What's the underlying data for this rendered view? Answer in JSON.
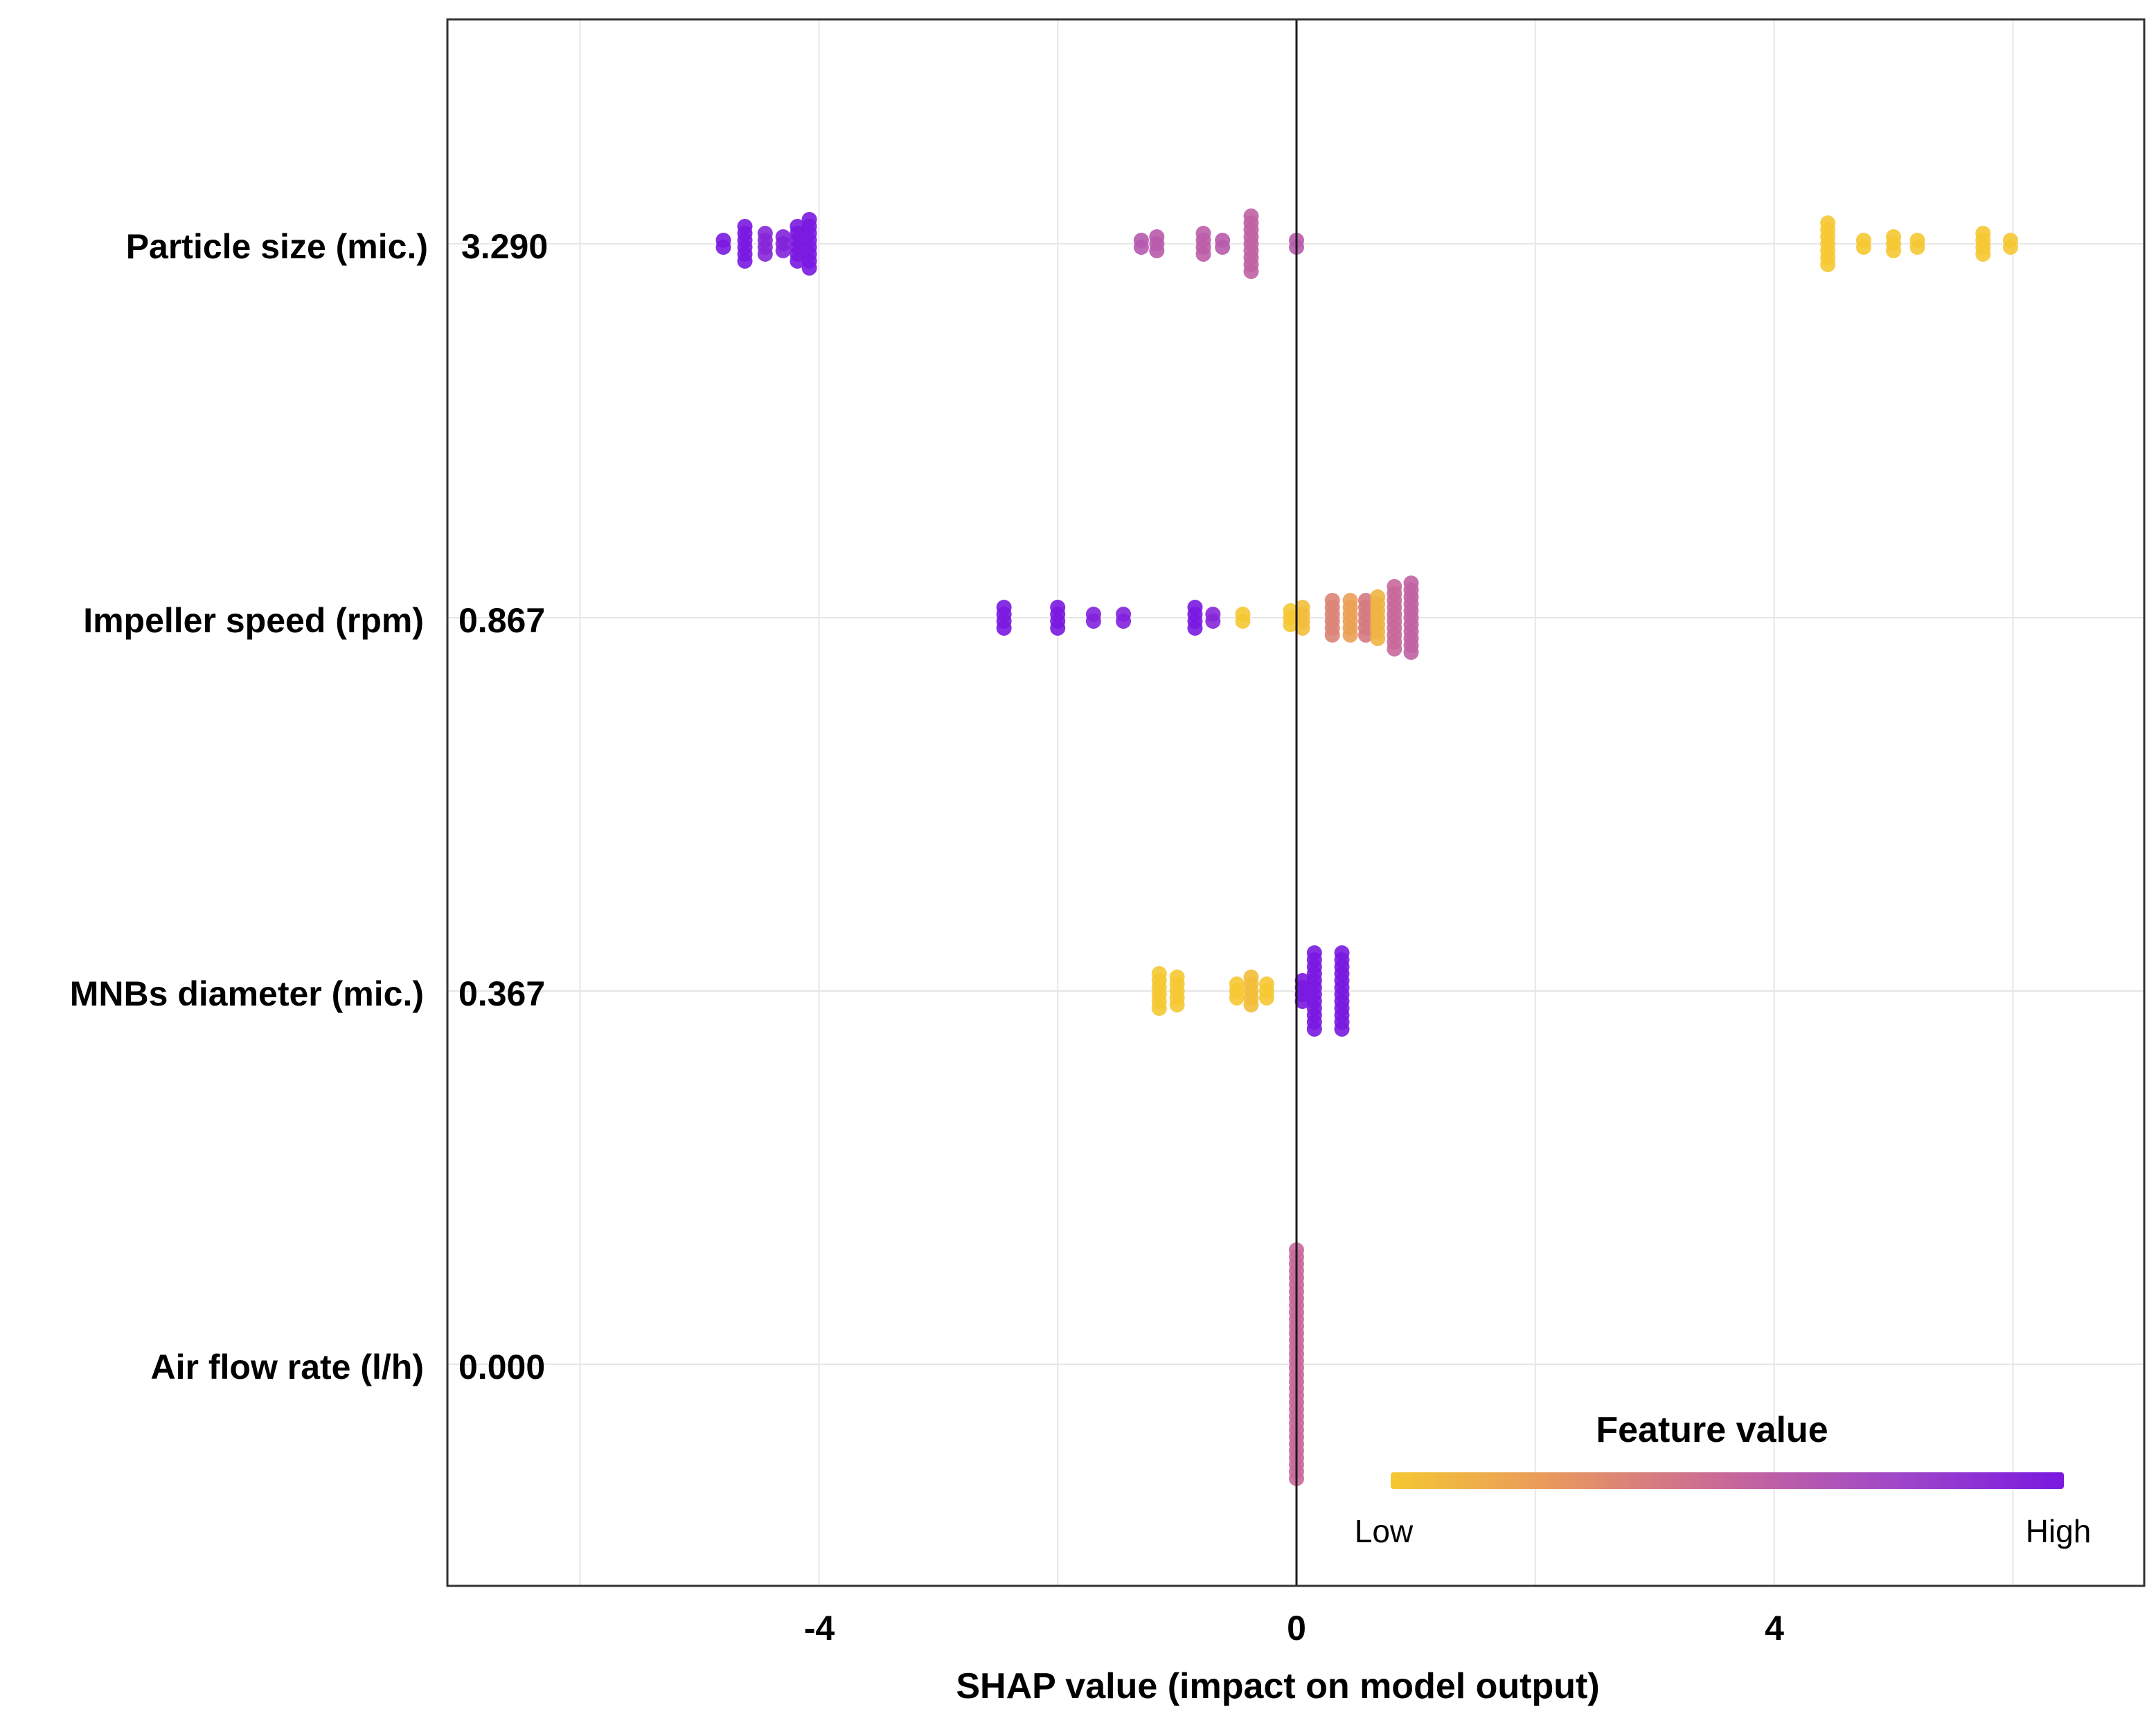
{
  "chart_data": {
    "type": "scatter",
    "title": "",
    "xlabel": "SHAP value (impact on model output)",
    "ylabel": "",
    "xlim": [
      -6.8,
      7.2
    ],
    "xticks": [
      -4,
      0,
      4
    ],
    "xtick_labels": [
      "-4",
      "0",
      "4"
    ],
    "grid": true,
    "legend": {
      "title": "Feature value",
      "low_label": "Low",
      "high_label": "High",
      "colors": [
        "#f5c832",
        "#e89660",
        "#c8689a",
        "#a048c8",
        "#7a18e0"
      ],
      "position": "bottom-right"
    },
    "features": [
      {
        "name": "Particle size (mic.)",
        "importance": "3.290",
        "points": [
          {
            "x": -4.8,
            "v": 1.0,
            "n": 2
          },
          {
            "x": -4.62,
            "v": 1.0,
            "n": 6
          },
          {
            "x": -4.45,
            "v": 0.92,
            "n": 4
          },
          {
            "x": -4.3,
            "v": 0.95,
            "n": 3
          },
          {
            "x": -4.18,
            "v": 1.0,
            "n": 6
          },
          {
            "x": -4.08,
            "v": 1.0,
            "n": 8
          },
          {
            "x": -1.3,
            "v": 0.62,
            "n": 2
          },
          {
            "x": -1.17,
            "v": 0.6,
            "n": 3
          },
          {
            "x": -0.78,
            "v": 0.58,
            "n": 4
          },
          {
            "x": -0.62,
            "v": 0.6,
            "n": 2
          },
          {
            "x": -0.38,
            "v": 0.55,
            "n": 9
          },
          {
            "x": 0.0,
            "v": 0.6,
            "n": 2
          },
          {
            "x": 4.45,
            "v": 0.0,
            "n": 7
          },
          {
            "x": 4.75,
            "v": 0.0,
            "n": 2
          },
          {
            "x": 5.0,
            "v": 0.0,
            "n": 3
          },
          {
            "x": 5.2,
            "v": 0.0,
            "n": 2
          },
          {
            "x": 5.75,
            "v": 0.0,
            "n": 4
          },
          {
            "x": 5.98,
            "v": 0.0,
            "n": 2
          }
        ]
      },
      {
        "name": "Impeller speed (rpm)",
        "importance": "0.867",
        "points": [
          {
            "x": -2.45,
            "v": 1.0,
            "n": 4
          },
          {
            "x": -2.0,
            "v": 1.0,
            "n": 4
          },
          {
            "x": -1.7,
            "v": 0.95,
            "n": 2
          },
          {
            "x": -1.45,
            "v": 0.95,
            "n": 2
          },
          {
            "x": -0.85,
            "v": 1.0,
            "n": 4
          },
          {
            "x": -0.7,
            "v": 0.92,
            "n": 2
          },
          {
            "x": -0.45,
            "v": 0.0,
            "n": 2
          },
          {
            "x": -0.05,
            "v": 0.0,
            "n": 3
          },
          {
            "x": 0.05,
            "v": 0.05,
            "n": 4
          },
          {
            "x": 0.3,
            "v": 0.35,
            "n": 6
          },
          {
            "x": 0.45,
            "v": 0.2,
            "n": 6
          },
          {
            "x": 0.58,
            "v": 0.4,
            "n": 6
          },
          {
            "x": 0.68,
            "v": 0.1,
            "n": 7
          },
          {
            "x": 0.82,
            "v": 0.5,
            "n": 10
          },
          {
            "x": 0.96,
            "v": 0.55,
            "n": 11
          }
        ]
      },
      {
        "name": "MNBs diameter (mic.)",
        "importance": "0.367",
        "points": [
          {
            "x": -1.15,
            "v": 0.0,
            "n": 6
          },
          {
            "x": -1.0,
            "v": 0.0,
            "n": 5
          },
          {
            "x": -0.5,
            "v": 0.0,
            "n": 3
          },
          {
            "x": -0.38,
            "v": 0.05,
            "n": 5
          },
          {
            "x": -0.25,
            "v": 0.0,
            "n": 3
          },
          {
            "x": 0.05,
            "v": 1.0,
            "n": 4
          },
          {
            "x": 0.15,
            "v": 1.0,
            "n": 12
          },
          {
            "x": 0.38,
            "v": 1.0,
            "n": 12
          }
        ]
      },
      {
        "name": "Air flow rate (l/h)",
        "importance": "0.000",
        "points": [
          {
            "x": 0.0,
            "v": 0.5,
            "n": 34
          }
        ]
      }
    ]
  }
}
